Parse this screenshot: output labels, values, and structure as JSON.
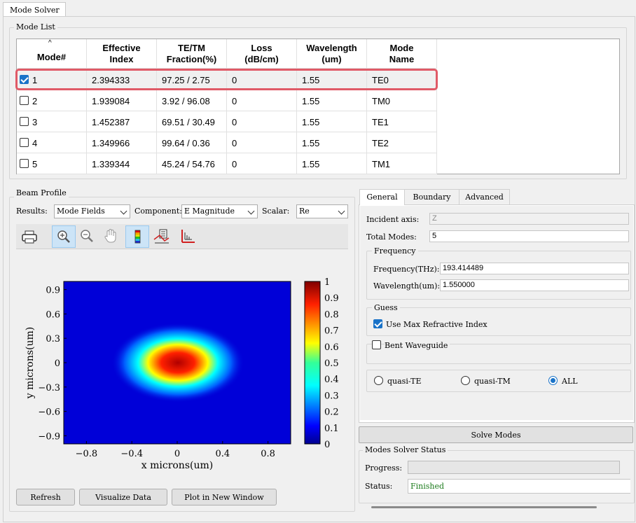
{
  "top_tab": "Mode Solver",
  "mode_list": {
    "title": "Mode List",
    "columns": [
      "Mode#",
      "Effective\nIndex",
      "TE/TM\nFraction(%)",
      "Loss\n(dB/cm)",
      "Wavelength\n(um)",
      "Mode\nName"
    ],
    "rows": [
      {
        "mode": "1",
        "index": "2.394333",
        "fraction": "97.25 / 2.75",
        "loss": "0",
        "wavelength": "1.55",
        "name": "TE0",
        "checked": true
      },
      {
        "mode": "2",
        "index": "1.939084",
        "fraction": "3.92 / 96.08",
        "loss": "0",
        "wavelength": "1.55",
        "name": "TM0",
        "checked": false
      },
      {
        "mode": "3",
        "index": "1.452387",
        "fraction": "69.51 / 30.49",
        "loss": "0",
        "wavelength": "1.55",
        "name": "TE1",
        "checked": false
      },
      {
        "mode": "4",
        "index": "1.349966",
        "fraction": "99.64 / 0.36",
        "loss": "0",
        "wavelength": "1.55",
        "name": "TE2",
        "checked": false
      },
      {
        "mode": "5",
        "index": "1.339344",
        "fraction": "45.24 / 54.76",
        "loss": "0",
        "wavelength": "1.55",
        "name": "TM1",
        "checked": false
      }
    ]
  },
  "beam_profile": {
    "title": "Beam Profile",
    "results_label": "Results:",
    "results_value": "Mode Fields",
    "component_label": "Component:",
    "component_value": "E Magnitude",
    "scalar_label": "Scalar:",
    "scalar_value": "Re",
    "toolbar_icons": [
      "print-icon",
      "zoom-in-icon",
      "zoom-out-icon",
      "pan-hand-icon",
      "colormap-icon",
      "data-cursor-icon",
      "axes-icon"
    ],
    "plot": {
      "xlabel": "x microns(um)",
      "ylabel": "y microns(um)",
      "xticks": [
        "−0.8",
        "−0.4",
        "0",
        "0.4",
        "0.8"
      ],
      "yticks": [
        "0.9",
        "0.6",
        "0.3",
        "0",
        "−0.3",
        "−0.6",
        "−0.9"
      ],
      "colorbar_ticks": [
        "1",
        "0.9",
        "0.8",
        "0.7",
        "0.6",
        "0.5",
        "0.4",
        "0.3",
        "0.2",
        "0.1",
        "0"
      ],
      "xlim": [
        -1,
        1
      ],
      "ylim": [
        -1,
        1
      ]
    },
    "buttons": {
      "refresh": "Refresh",
      "visualize": "Visualize Data",
      "plot_new": "Plot in New Window"
    }
  },
  "settings": {
    "tabs": [
      "General",
      "Boundary",
      "Advanced"
    ],
    "incident_axis_label": "Incident axis:",
    "incident_axis_value": "Z",
    "total_modes_label": "Total Modes:",
    "total_modes_value": "5",
    "frequency": {
      "title": "Frequency",
      "freq_label": "Frequency(THz):",
      "freq_value": "193.414489",
      "wl_label": "Wavelength(um):",
      "wl_value": "1.550000"
    },
    "guess": {
      "title": "Guess",
      "use_max_label": "Use Max Refractive Index"
    },
    "bent_label": "Bent Waveguide",
    "radios": [
      "quasi-TE",
      "quasi-TM",
      "ALL"
    ],
    "solve_button": "Solve Modes"
  },
  "status": {
    "title": "Modes Solver Status",
    "progress_label": "Progress:",
    "progress_fraction": 0,
    "status_label": "Status:",
    "status_value": "Finished"
  },
  "colors": {
    "selection_outline": "#e05a67",
    "accent": "#1a73c8",
    "status_text": "#1a7a1a"
  }
}
